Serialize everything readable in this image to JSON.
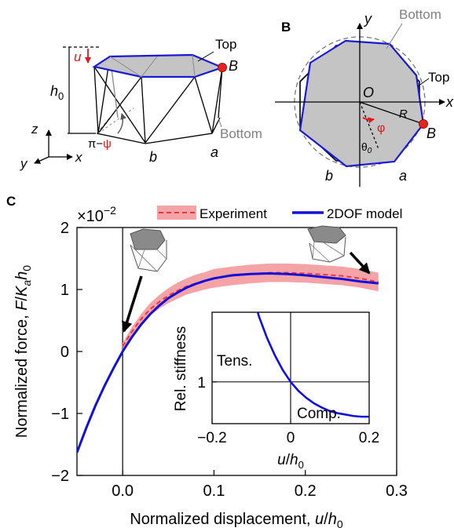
{
  "panels": {
    "A": {
      "labels": {
        "u": "u",
        "h0": "h",
        "h0_sub": "0",
        "top": "Top",
        "B": "B",
        "bottom": "Bottom",
        "pi_minus": "π−",
        "psi": "ψ",
        "b": "b",
        "a": "a",
        "z": "z",
        "y": "y",
        "x": "x"
      }
    },
    "B": {
      "letter": "B",
      "labels": {
        "y": "y",
        "x": "x",
        "O": "O",
        "R": "R",
        "phi": "φ",
        "B": "B",
        "theta": "θ",
        "theta_sub": "0",
        "bottom": "Bottom",
        "top": "Top",
        "b": "b",
        "a": "a"
      }
    },
    "C": {
      "letter": "C"
    }
  },
  "colors": {
    "model": "#1010dd",
    "experiment_line": "#e8383b",
    "experiment_band": "#f4a3a6",
    "polygon_fill": "#c4c4c4",
    "polygon_top": "#1a1ad6",
    "marker": "#e52420",
    "accent_text": "#e01818",
    "gray_text": "#808080"
  },
  "chart_data": {
    "type": "line",
    "xlabel": "Normalized displacement, u/h0",
    "xlabel_main": "Normalized displacement, ",
    "xlabel_var": "u",
    "xlabel_slash": "/",
    "xlabel_h": "h",
    "xlabel_h_sub": "0",
    "ylabel": "Normalized force, F/Kah0",
    "ylabel_main": "Normalized force, ",
    "ylabel_F": "F",
    "ylabel_slash": "/",
    "ylabel_K": "K",
    "ylabel_K_sub": "a",
    "ylabel_h": "h",
    "ylabel_h_sub": "0",
    "y_multiplier": "×10",
    "y_multiplier_exp": "−2",
    "xlim": [
      -0.05,
      0.3
    ],
    "ylim": [
      -2,
      2
    ],
    "xticks": [
      0.0,
      0.1,
      0.2,
      0.3
    ],
    "xtick_labels": [
      "0.0",
      "0.1",
      "0.2",
      "0.3"
    ],
    "yticks": [
      -2,
      -1,
      0,
      1,
      2
    ],
    "ytick_labels": [
      "−2",
      "−1",
      "0",
      "1",
      "2"
    ],
    "legend": {
      "placement": "top",
      "entries": [
        "Experiment",
        "2DOF model"
      ]
    },
    "series": [
      {
        "name": "2DOF model",
        "x": [
          -0.05,
          -0.04,
          -0.03,
          -0.02,
          -0.01,
          0.0,
          0.01,
          0.02,
          0.03,
          0.04,
          0.05,
          0.06,
          0.07,
          0.08,
          0.09,
          0.1,
          0.12,
          0.14,
          0.16,
          0.18,
          0.2,
          0.22,
          0.24,
          0.26,
          0.28
        ],
        "y": [
          -1.63,
          -1.24,
          -0.88,
          -0.56,
          -0.27,
          0.0,
          0.23,
          0.43,
          0.6,
          0.74,
          0.86,
          0.95,
          1.03,
          1.09,
          1.14,
          1.18,
          1.23,
          1.25,
          1.26,
          1.25,
          1.23,
          1.2,
          1.17,
          1.13,
          1.1
        ]
      },
      {
        "name": "Experiment",
        "x": [
          0.0,
          0.01,
          0.02,
          0.03,
          0.04,
          0.05,
          0.06,
          0.07,
          0.08,
          0.09,
          0.1,
          0.12,
          0.14,
          0.16,
          0.18,
          0.2,
          0.22,
          0.24,
          0.26,
          0.28
        ],
        "y": [
          0.08,
          0.32,
          0.52,
          0.68,
          0.8,
          0.9,
          0.98,
          1.05,
          1.1,
          1.14,
          1.18,
          1.22,
          1.25,
          1.27,
          1.27,
          1.26,
          1.24,
          1.22,
          1.18,
          1.12
        ],
        "band": [
          0.06,
          0.07,
          0.08,
          0.1,
          0.11,
          0.12,
          0.13,
          0.13,
          0.14,
          0.14,
          0.15,
          0.15,
          0.15,
          0.15,
          0.15,
          0.15,
          0.15,
          0.15,
          0.15,
          0.15
        ]
      }
    ],
    "inset": {
      "ylabel": "Rel. stiffness",
      "xlabel": "u/h0",
      "xlabel_var": "u",
      "xlabel_slash": "/",
      "xlabel_h": "h",
      "xlabel_h_sub": "0",
      "xlim": [
        -0.2,
        0.2
      ],
      "xticks": [
        -0.2,
        0,
        0.2
      ],
      "xtick_labels": [
        "−0.2",
        "0",
        "0.2"
      ],
      "ytick": 1,
      "ytick_label": "1",
      "reference_y": 1,
      "annotations": [
        "Tens.",
        "Comp."
      ],
      "series": [
        {
          "x": [
            -0.1,
            -0.08,
            -0.06,
            -0.04,
            -0.02,
            0.0,
            0.02,
            0.04,
            0.06,
            0.08,
            0.1,
            0.12,
            0.14,
            0.16,
            0.18,
            0.2
          ],
          "y": [
            2.3,
            1.93,
            1.63,
            1.38,
            1.17,
            1.0,
            0.87,
            0.77,
            0.69,
            0.63,
            0.58,
            0.55,
            0.53,
            0.51,
            0.5,
            0.5
          ]
        }
      ]
    }
  }
}
